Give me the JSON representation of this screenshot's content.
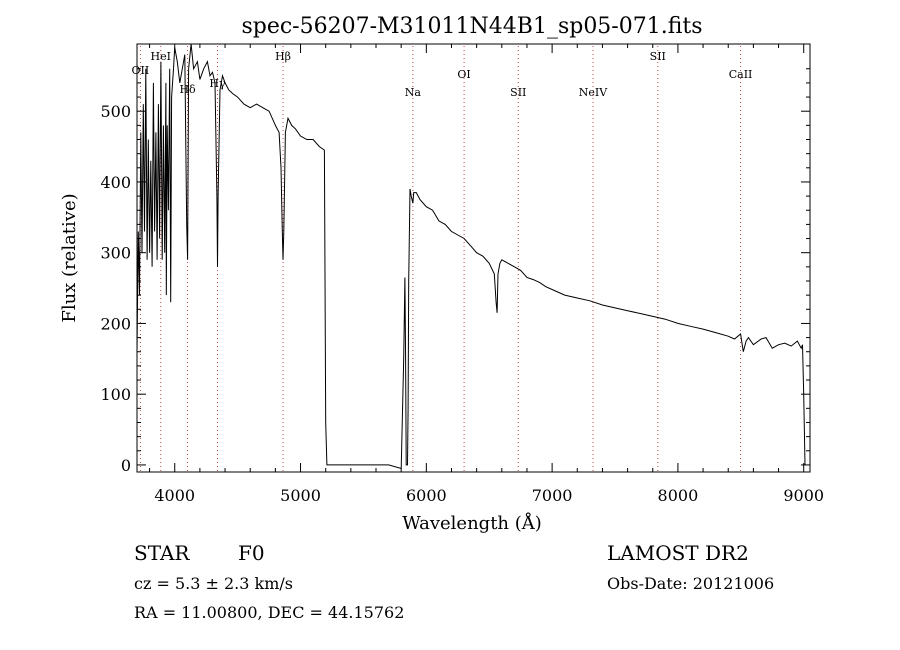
{
  "chart_data": {
    "type": "line",
    "title": "spec-56207-M31011N44B1_sp05-071.fits",
    "xlabel": "Wavelength (Å)",
    "ylabel": "Flux (relative)",
    "xlim": [
      3700,
      9050
    ],
    "ylim": [
      -10,
      595
    ],
    "x_ticks": [
      4000,
      5000,
      6000,
      7000,
      8000,
      9000
    ],
    "y_ticks": [
      0,
      100,
      200,
      300,
      400,
      500
    ],
    "line_color": "#000000",
    "marker_color": "#d04040",
    "lines": [
      {
        "name": "OII",
        "wavelength": 3727
      },
      {
        "name": "HeI",
        "wavelength": 3889
      },
      {
        "name": "Hδ",
        "wavelength": 4102
      },
      {
        "name": "Hγ",
        "wavelength": 4340
      },
      {
        "name": "Hβ",
        "wavelength": 4861
      },
      {
        "name": "Na",
        "wavelength": 5893
      },
      {
        "name": "OI",
        "wavelength": 6300
      },
      {
        "name": "SII",
        "wavelength": 6731
      },
      {
        "name": "NeIV",
        "wavelength": 7325
      },
      {
        "name": "SII",
        "wavelength": 7840
      },
      {
        "name": "CaII",
        "wavelength": 8498
      }
    ],
    "series": [
      {
        "x": [
          3700,
          3710,
          3720,
          3730,
          3740,
          3750,
          3760,
          3770,
          3780,
          3790,
          3800,
          3810,
          3820,
          3830,
          3840,
          3850,
          3860,
          3870,
          3880,
          3890,
          3900,
          3910,
          3920,
          3930,
          3933,
          3940,
          3950,
          3960,
          3968,
          3975,
          3990,
          4000,
          4020,
          4040,
          4060,
          4080,
          4095,
          4102,
          4110,
          4130,
          4150,
          4180,
          4200,
          4230,
          4260,
          4280,
          4300,
          4320,
          4335,
          4340,
          4345,
          4360,
          4380,
          4400,
          4430,
          4460,
          4500,
          4550,
          4600,
          4650,
          4700,
          4750,
          4800,
          4830,
          4845,
          4855,
          4861,
          4867,
          4880,
          4900,
          4930,
          4960,
          5000,
          5050,
          5100,
          5150,
          5190,
          5200,
          5210,
          5700,
          5800,
          5820,
          5830,
          5835,
          5840,
          5850,
          5855,
          5860,
          5870,
          5880,
          5893,
          5900,
          5920,
          5950,
          6000,
          6050,
          6100,
          6150,
          6200,
          6250,
          6300,
          6350,
          6400,
          6450,
          6500,
          6540,
          6555,
          6563,
          6570,
          6585,
          6600,
          6650,
          6700,
          6750,
          6800,
          6850,
          6900,
          6950,
          7000,
          7100,
          7200,
          7300,
          7400,
          7500,
          7600,
          7700,
          7800,
          7900,
          8000,
          8100,
          8200,
          8300,
          8400,
          8450,
          8498,
          8520,
          8542,
          8560,
          8600,
          8662,
          8700,
          8750,
          8800,
          8850,
          8900,
          8950,
          8980,
          8990,
          9000,
          9010
        ],
        "y": [
          160,
          330,
          240,
          470,
          300,
          510,
          330,
          560,
          290,
          460,
          300,
          430,
          280,
          540,
          330,
          470,
          290,
          510,
          320,
          570,
          290,
          480,
          300,
          540,
          240,
          480,
          360,
          560,
          230,
          520,
          560,
          590,
          570,
          540,
          560,
          580,
          340,
          290,
          560,
          600,
          560,
          570,
          545,
          560,
          570,
          550,
          555,
          540,
          380,
          280,
          380,
          530,
          550,
          540,
          530,
          525,
          520,
          510,
          505,
          510,
          505,
          500,
          480,
          470,
          420,
          330,
          290,
          330,
          470,
          490,
          480,
          475,
          465,
          460,
          460,
          450,
          445,
          60,
          0,
          0,
          -5,
          150,
          265,
          150,
          0,
          0,
          80,
          260,
          390,
          380,
          370,
          385,
          385,
          375,
          365,
          360,
          345,
          340,
          330,
          325,
          320,
          310,
          300,
          295,
          285,
          270,
          230,
          215,
          270,
          285,
          290,
          285,
          280,
          275,
          265,
          262,
          258,
          252,
          248,
          240,
          236,
          232,
          226,
          222,
          218,
          214,
          210,
          206,
          200,
          196,
          192,
          187,
          182,
          178,
          185,
          160,
          175,
          180,
          170,
          178,
          180,
          165,
          170,
          172,
          168,
          175,
          165,
          170,
          100,
          0
        ]
      }
    ]
  },
  "footer": {
    "object_class": "STAR",
    "subclass": "F0",
    "survey": "LAMOST DR2",
    "velocity": "cz = 5.3 ± 2.3 km/s",
    "obs_date": "Obs-Date: 20121006",
    "coords": "RA =  11.00800, DEC =  44.15762"
  }
}
